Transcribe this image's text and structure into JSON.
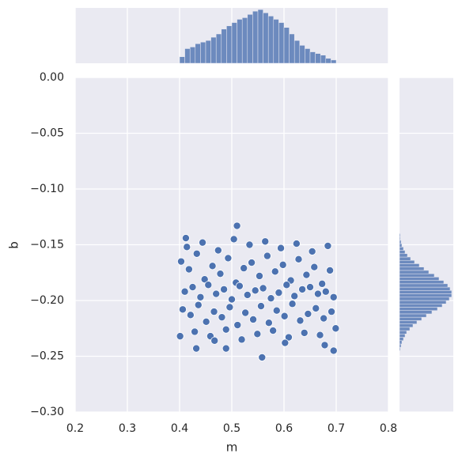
{
  "chart_data": {
    "type": "scatter",
    "xlabel": "m",
    "ylabel": "b",
    "color": "#4c72b0",
    "grid": true,
    "xlim": [
      0.2,
      0.8
    ],
    "ylim": [
      -0.3,
      0
    ],
    "xticks": [
      0.2,
      0.3,
      0.4,
      0.5,
      0.6,
      0.7,
      0.8
    ],
    "yticks": [
      {
        "value": 0,
        "label": "0.00"
      },
      {
        "value": -0.05,
        "label": "−0.05"
      },
      {
        "value": -0.1,
        "label": "−0.10"
      },
      {
        "value": -0.15,
        "label": "−0.15"
      },
      {
        "value": -0.2,
        "label": "−0.20"
      },
      {
        "value": -0.25,
        "label": "−0.25"
      },
      {
        "value": -0.3,
        "label": "−0.30"
      }
    ],
    "x": [
      0.403,
      0.418,
      0.433,
      0.448,
      0.463,
      0.478,
      0.493,
      0.508,
      0.523,
      0.538,
      0.553,
      0.568,
      0.583,
      0.598,
      0.613,
      0.628,
      0.643,
      0.658,
      0.673,
      0.688,
      0.41,
      0.425,
      0.44,
      0.455,
      0.47,
      0.485,
      0.5,
      0.515,
      0.53,
      0.545,
      0.56,
      0.575,
      0.59,
      0.605,
      0.62,
      0.635,
      0.65,
      0.665,
      0.68,
      0.695,
      0.406,
      0.421,
      0.436,
      0.451,
      0.466,
      0.481,
      0.496,
      0.511,
      0.526,
      0.541,
      0.556,
      0.571,
      0.586,
      0.601,
      0.616,
      0.631,
      0.646,
      0.661,
      0.676,
      0.691,
      0.414,
      0.444,
      0.474,
      0.504,
      0.534,
      0.564,
      0.594,
      0.624,
      0.654,
      0.684,
      0.429,
      0.459,
      0.489,
      0.519,
      0.549,
      0.579,
      0.609,
      0.639,
      0.669,
      0.699,
      0.51,
      0.558,
      0.432,
      0.489,
      0.695,
      0.401,
      0.412,
      0.678,
      0.602,
      0.467
    ],
    "y": [
      -0.165,
      -0.172,
      -0.158,
      -0.181,
      -0.169,
      -0.176,
      -0.162,
      -0.184,
      -0.171,
      -0.166,
      -0.178,
      -0.16,
      -0.174,
      -0.168,
      -0.182,
      -0.163,
      -0.177,
      -0.17,
      -0.185,
      -0.173,
      -0.192,
      -0.188,
      -0.197,
      -0.186,
      -0.194,
      -0.19,
      -0.199,
      -0.187,
      -0.195,
      -0.191,
      -0.189,
      -0.198,
      -0.193,
      -0.186,
      -0.196,
      -0.19,
      -0.188,
      -0.194,
      -0.192,
      -0.197,
      -0.208,
      -0.213,
      -0.204,
      -0.219,
      -0.21,
      -0.215,
      -0.206,
      -0.222,
      -0.211,
      -0.217,
      -0.205,
      -0.22,
      -0.209,
      -0.214,
      -0.203,
      -0.218,
      -0.212,
      -0.207,
      -0.216,
      -0.21,
      -0.152,
      -0.148,
      -0.155,
      -0.145,
      -0.15,
      -0.147,
      -0.153,
      -0.149,
      -0.156,
      -0.151,
      -0.228,
      -0.232,
      -0.226,
      -0.235,
      -0.23,
      -0.227,
      -0.233,
      -0.229,
      -0.231,
      -0.225,
      -0.133,
      -0.251,
      -0.243,
      -0.243,
      -0.245,
      -0.232,
      -0.144,
      -0.24,
      -0.238,
      -0.236
    ],
    "marginal_x": {
      "type": "histogram",
      "bins": [
        0.4,
        0.41,
        0.42,
        0.43,
        0.44,
        0.45,
        0.46,
        0.47,
        0.48,
        0.49,
        0.5,
        0.51,
        0.52,
        0.53,
        0.54,
        0.55,
        0.56,
        0.57,
        0.58,
        0.59,
        0.6,
        0.61,
        0.62,
        0.63,
        0.64,
        0.65,
        0.66,
        0.67,
        0.68,
        0.69,
        0.7
      ],
      "counts": [
        8,
        18,
        20,
        24,
        26,
        28,
        32,
        36,
        42,
        46,
        50,
        54,
        56,
        60,
        64,
        66,
        62,
        58,
        54,
        50,
        44,
        36,
        28,
        22,
        18,
        14,
        12,
        10,
        6,
        4
      ]
    },
    "marginal_y": {
      "type": "histogram",
      "orientation": "horizontal",
      "bins": [
        -0.245,
        -0.242,
        -0.239,
        -0.236,
        -0.233,
        -0.23,
        -0.227,
        -0.224,
        -0.221,
        -0.218,
        -0.215,
        -0.212,
        -0.209,
        -0.206,
        -0.203,
        -0.2,
        -0.197,
        -0.194,
        -0.191,
        -0.188,
        -0.185,
        -0.182,
        -0.179,
        -0.176,
        -0.173,
        -0.17,
        -0.167,
        -0.164,
        -0.161,
        -0.158,
        -0.155,
        -0.152,
        -0.149,
        -0.146,
        -0.143,
        -0.14
      ],
      "counts": [
        1,
        2,
        3,
        5,
        7,
        9,
        13,
        17,
        22,
        28,
        34,
        41,
        48,
        54,
        59,
        63,
        66,
        66,
        64,
        61,
        56,
        50,
        44,
        37,
        31,
        25,
        19,
        14,
        10,
        7,
        5,
        3,
        2,
        1,
        1
      ]
    }
  }
}
